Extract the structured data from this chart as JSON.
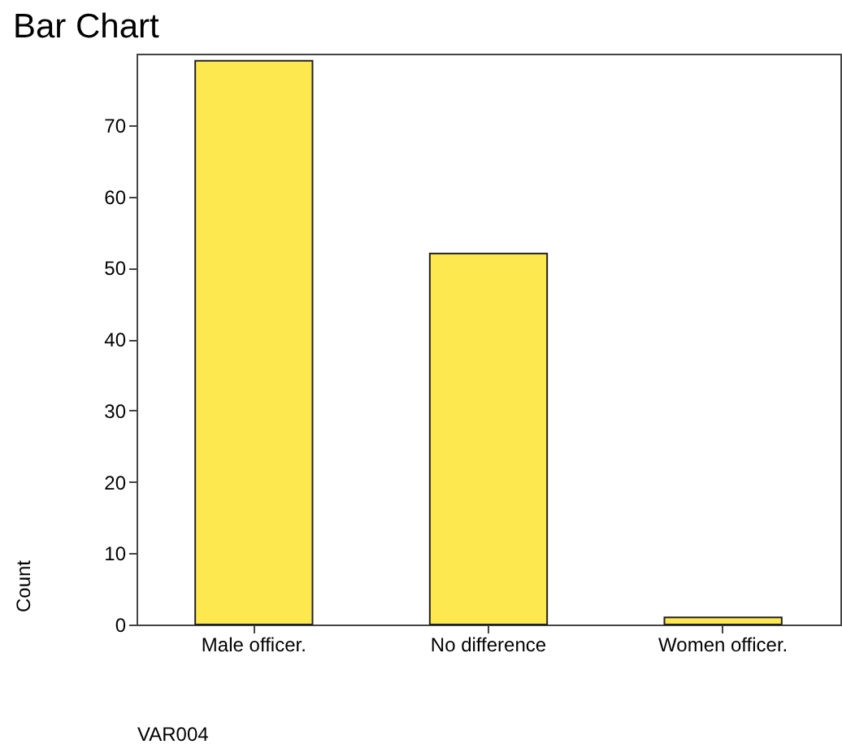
{
  "chart_data": {
    "type": "bar",
    "title": "Bar Chart",
    "xlabel": "VAR004",
    "ylabel": "Count",
    "categories": [
      "Male officer.",
      "No difference",
      "Women officer."
    ],
    "values": [
      79,
      52,
      1
    ],
    "color": "#fde84f",
    "ylim": [
      0,
      80
    ],
    "yticks": [
      0,
      10,
      20,
      30,
      40,
      50,
      60,
      70
    ],
    "grid": false
  }
}
